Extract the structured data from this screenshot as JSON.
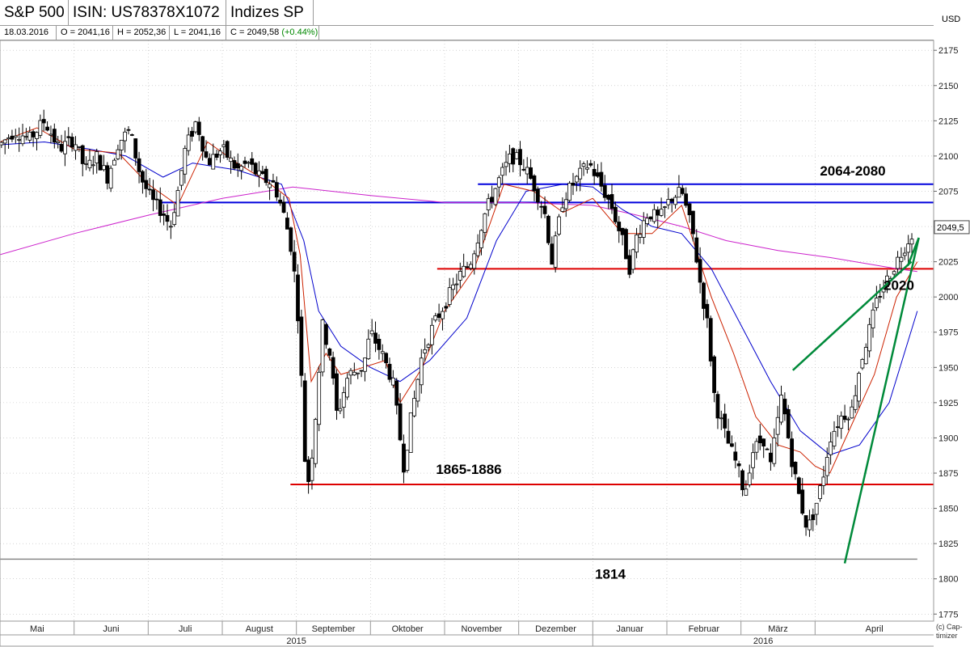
{
  "header": {
    "name": "S&P 500",
    "isin": "ISIN: US78378X1072",
    "index_group": "Indizes SP"
  },
  "info": {
    "date": "18.03.2016",
    "open": "O = 2041,16",
    "high": "H = 2052,36",
    "low": "L = 2041,16",
    "close": "C = 2049,58",
    "change": "(+0.44%)"
  },
  "currency": "USD",
  "last_price_label": "2049,5",
  "copyright": [
    "(c) Cap-",
    "timizer"
  ],
  "colors": {
    "resistance_blue": "#0000dd",
    "support_red": "#dd0000",
    "trend_green": "#008a3a",
    "ma_fast": "#cc2200",
    "ma_mid": "#0000cc",
    "ma_slow": "#cc22cc",
    "change_positive": "#008800"
  },
  "chart_data": {
    "type": "candlestick",
    "y_axis": {
      "ticks": [
        2175,
        2150,
        2125,
        2100,
        2075,
        2050,
        2025,
        2000,
        1975,
        1950,
        1925,
        1900,
        1875,
        1850,
        1825,
        1800,
        1775
      ],
      "ylim": [
        1770,
        2182
      ],
      "position": "right"
    },
    "x_axis": {
      "range_months": [
        4,
        16.6
      ],
      "month_labels": [
        {
          "label": "Mai",
          "m": 4
        },
        {
          "label": "Juni",
          "m": 5
        },
        {
          "label": "Juli",
          "m": 6
        },
        {
          "label": "August",
          "m": 7
        },
        {
          "label": "September",
          "m": 8
        },
        {
          "label": "Oktober",
          "m": 9
        },
        {
          "label": "November",
          "m": 10
        },
        {
          "label": "Dezember",
          "m": 11
        },
        {
          "label": "Januar",
          "m": 12
        },
        {
          "label": "Februar",
          "m": 13
        },
        {
          "label": "März",
          "m": 14
        },
        {
          "label": "April",
          "m": 15
        }
      ],
      "year_labels": [
        {
          "label": "2015",
          "from": 4,
          "to": 12
        },
        {
          "label": "2016",
          "from": 12,
          "to": 16.6
        }
      ]
    },
    "price_anchors": [
      [
        4.0,
        2108
      ],
      [
        4.2,
        2118
      ],
      [
        4.4,
        2112
      ],
      [
        4.6,
        2125
      ],
      [
        4.8,
        2105
      ],
      [
        5.0,
        2112
      ],
      [
        5.15,
        2090
      ],
      [
        5.3,
        2100
      ],
      [
        5.45,
        2085
      ],
      [
        5.6,
        2110
      ],
      [
        5.75,
        2118
      ],
      [
        5.9,
        2085
      ],
      [
        6.05,
        2068
      ],
      [
        6.2,
        2060
      ],
      [
        6.3,
        2050
      ],
      [
        6.4,
        2075
      ],
      [
        6.5,
        2105
      ],
      [
        6.65,
        2125
      ],
      [
        6.8,
        2095
      ],
      [
        7.0,
        2105
      ],
      [
        7.2,
        2090
      ],
      [
        7.35,
        2095
      ],
      [
        7.5,
        2085
      ],
      [
        7.7,
        2080
      ],
      [
        7.85,
        2055
      ],
      [
        7.95,
        2030
      ],
      [
        8.05,
        1970
      ],
      [
        8.1,
        1890
      ],
      [
        8.17,
        1868
      ],
      [
        8.25,
        1910
      ],
      [
        8.35,
        1980
      ],
      [
        8.45,
        1960
      ],
      [
        8.55,
        1915
      ],
      [
        8.7,
        1945
      ],
      [
        8.9,
        1950
      ],
      [
        9.0,
        1975
      ],
      [
        9.15,
        1960
      ],
      [
        9.3,
        1940
      ],
      [
        9.45,
        1880
      ],
      [
        9.55,
        1915
      ],
      [
        9.7,
        1960
      ],
      [
        9.85,
        1980
      ],
      [
        10.0,
        1995
      ],
      [
        10.2,
        2015
      ],
      [
        10.35,
        2025
      ],
      [
        10.55,
        2060
      ],
      [
        10.75,
        2085
      ],
      [
        10.9,
        2100
      ],
      [
        11.05,
        2095
      ],
      [
        11.2,
        2080
      ],
      [
        11.35,
        2060
      ],
      [
        11.45,
        2025
      ],
      [
        11.6,
        2070
      ],
      [
        11.8,
        2085
      ],
      [
        11.95,
        2095
      ],
      [
        12.1,
        2080
      ],
      [
        12.25,
        2065
      ],
      [
        12.4,
        2040
      ],
      [
        12.5,
        2020
      ],
      [
        12.6,
        2045
      ],
      [
        12.75,
        2060
      ],
      [
        12.9,
        2055
      ],
      [
        13.05,
        2070
      ],
      [
        13.2,
        2075
      ],
      [
        13.35,
        2045
      ],
      [
        13.45,
        2010
      ],
      [
        13.55,
        1980
      ],
      [
        13.65,
        1925
      ],
      [
        13.8,
        1900
      ],
      [
        13.95,
        1880
      ],
      [
        14.05,
        1860
      ],
      [
        14.15,
        1890
      ],
      [
        14.3,
        1900
      ],
      [
        14.4,
        1880
      ],
      [
        14.55,
        1930
      ],
      [
        14.7,
        1880
      ],
      [
        14.8,
        1855
      ],
      [
        14.9,
        1835
      ],
      [
        15.0,
        1850
      ],
      [
        15.1,
        1870
      ],
      [
        15.2,
        1900
      ],
      [
        15.35,
        1915
      ],
      [
        15.5,
        1920
      ],
      [
        15.6,
        1950
      ],
      [
        15.75,
        1980
      ],
      [
        15.85,
        2000
      ],
      [
        15.95,
        2010
      ],
      [
        16.05,
        2020
      ],
      [
        16.15,
        2030
      ],
      [
        16.25,
        2040
      ],
      [
        16.35,
        2049
      ]
    ],
    "horizontal_levels": [
      {
        "value": 2080,
        "from": 10.45,
        "to": 16.6,
        "color": "#0000dd",
        "label": "2064-2080"
      },
      {
        "value": 2067,
        "from": 6.18,
        "to": 16.6,
        "color": "#0000dd",
        "label": ""
      },
      {
        "value": 2020,
        "from": 9.9,
        "to": 16.6,
        "color": "#dd0000",
        "label": "2020"
      },
      {
        "value": 1867,
        "from": 7.92,
        "to": 16.6,
        "color": "#dd0000",
        "label": "1865-1886"
      },
      {
        "value": 1814,
        "from": 4.0,
        "to": 16.38,
        "color": "#888888",
        "label": "1814"
      }
    ],
    "trend_lines": [
      {
        "from": [
          14.7,
          1948
        ],
        "to": [
          16.3,
          2025
        ],
        "color": "#008a3a"
      },
      {
        "from": [
          15.4,
          1811
        ],
        "to": [
          16.4,
          2042
        ],
        "color": "#008a3a"
      },
      {
        "from": [
          16.25,
          2022
        ],
        "to": [
          16.4,
          2042
        ],
        "color": "#008a3a"
      }
    ],
    "moving_averages": {
      "ma_slow": [
        [
          4.0,
          2030
        ],
        [
          5.0,
          2045
        ],
        [
          6.0,
          2058
        ],
        [
          7.0,
          2070
        ],
        [
          7.95,
          2078
        ],
        [
          9.0,
          2072
        ],
        [
          10.0,
          2067
        ],
        [
          11.0,
          2067
        ],
        [
          12.0,
          2065
        ],
        [
          12.6,
          2058
        ],
        [
          13.2,
          2050
        ],
        [
          13.8,
          2040
        ],
        [
          14.5,
          2033
        ],
        [
          15.2,
          2028
        ],
        [
          16.1,
          2020
        ],
        [
          16.38,
          2018
        ]
      ],
      "ma_mid": [
        [
          4.0,
          2108
        ],
        [
          4.6,
          2110
        ],
        [
          5.2,
          2105
        ],
        [
          5.7,
          2100
        ],
        [
          6.2,
          2085
        ],
        [
          6.6,
          2095
        ],
        [
          7.2,
          2090
        ],
        [
          7.8,
          2080
        ],
        [
          8.1,
          2040
        ],
        [
          8.3,
          1990
        ],
        [
          8.6,
          1965
        ],
        [
          9.0,
          1950
        ],
        [
          9.4,
          1940
        ],
        [
          9.8,
          1955
        ],
        [
          10.3,
          1985
        ],
        [
          10.7,
          2040
        ],
        [
          11.1,
          2075
        ],
        [
          11.6,
          2080
        ],
        [
          12.0,
          2078
        ],
        [
          12.4,
          2062
        ],
        [
          12.8,
          2050
        ],
        [
          13.2,
          2045
        ],
        [
          13.6,
          2020
        ],
        [
          14.0,
          1980
        ],
        [
          14.4,
          1940
        ],
        [
          14.8,
          1905
        ],
        [
          15.2,
          1888
        ],
        [
          15.6,
          1895
        ],
        [
          16.0,
          1925
        ],
        [
          16.38,
          1990
        ]
      ],
      "ma_fast": [
        [
          4.0,
          2110
        ],
        [
          4.5,
          2120
        ],
        [
          5.0,
          2105
        ],
        [
          5.6,
          2102
        ],
        [
          6.0,
          2080
        ],
        [
          6.4,
          2065
        ],
        [
          6.8,
          2110
        ],
        [
          7.2,
          2095
        ],
        [
          7.6,
          2082
        ],
        [
          7.9,
          2070
        ],
        [
          8.05,
          2030
        ],
        [
          8.2,
          1940
        ],
        [
          8.4,
          1960
        ],
        [
          8.6,
          1945
        ],
        [
          8.9,
          1950
        ],
        [
          9.2,
          1955
        ],
        [
          9.4,
          1925
        ],
        [
          9.7,
          1950
        ],
        [
          10.0,
          1990
        ],
        [
          10.4,
          2020
        ],
        [
          10.8,
          2080
        ],
        [
          11.2,
          2075
        ],
        [
          11.6,
          2060
        ],
        [
          12.0,
          2070
        ],
        [
          12.4,
          2045
        ],
        [
          12.8,
          2045
        ],
        [
          13.2,
          2065
        ],
        [
          13.6,
          2000
        ],
        [
          13.9,
          1960
        ],
        [
          14.2,
          1915
        ],
        [
          14.5,
          1895
        ],
        [
          14.8,
          1890
        ],
        [
          15.0,
          1880
        ],
        [
          15.2,
          1875
        ],
        [
          15.5,
          1910
        ],
        [
          15.8,
          1945
        ],
        [
          16.1,
          2000
        ],
        [
          16.38,
          2025
        ]
      ]
    }
  }
}
